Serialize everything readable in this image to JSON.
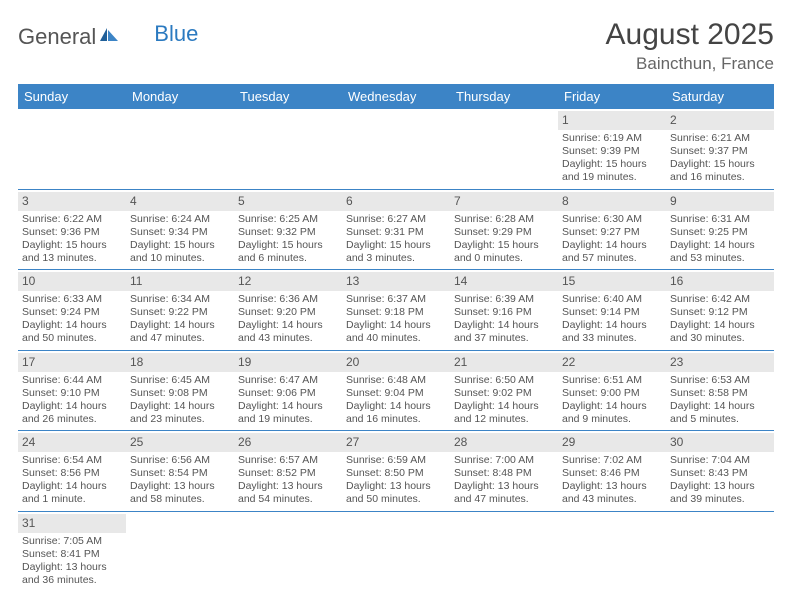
{
  "brand": {
    "general": "General",
    "blue": "Blue"
  },
  "header": {
    "title": "August 2025",
    "location": "Baincthun, France"
  },
  "columns": [
    "Sunday",
    "Monday",
    "Tuesday",
    "Wednesday",
    "Thursday",
    "Friday",
    "Saturday"
  ],
  "colors": {
    "header_bg": "#3c84c6",
    "header_text": "#ffffff",
    "daynum_bg": "#e8e8e8",
    "row_divider": "#3c84c6",
    "page_bg": "#ffffff",
    "text": "#4a4a4a"
  },
  "layout": {
    "first_weekday_index": 5,
    "days_in_month": 31
  },
  "cells": {
    "1": {
      "sunrise": "Sunrise: 6:19 AM",
      "sunset": "Sunset: 9:39 PM",
      "daylight": "Daylight: 15 hours and 19 minutes."
    },
    "2": {
      "sunrise": "Sunrise: 6:21 AM",
      "sunset": "Sunset: 9:37 PM",
      "daylight": "Daylight: 15 hours and 16 minutes."
    },
    "3": {
      "sunrise": "Sunrise: 6:22 AM",
      "sunset": "Sunset: 9:36 PM",
      "daylight": "Daylight: 15 hours and 13 minutes."
    },
    "4": {
      "sunrise": "Sunrise: 6:24 AM",
      "sunset": "Sunset: 9:34 PM",
      "daylight": "Daylight: 15 hours and 10 minutes."
    },
    "5": {
      "sunrise": "Sunrise: 6:25 AM",
      "sunset": "Sunset: 9:32 PM",
      "daylight": "Daylight: 15 hours and 6 minutes."
    },
    "6": {
      "sunrise": "Sunrise: 6:27 AM",
      "sunset": "Sunset: 9:31 PM",
      "daylight": "Daylight: 15 hours and 3 minutes."
    },
    "7": {
      "sunrise": "Sunrise: 6:28 AM",
      "sunset": "Sunset: 9:29 PM",
      "daylight": "Daylight: 15 hours and 0 minutes."
    },
    "8": {
      "sunrise": "Sunrise: 6:30 AM",
      "sunset": "Sunset: 9:27 PM",
      "daylight": "Daylight: 14 hours and 57 minutes."
    },
    "9": {
      "sunrise": "Sunrise: 6:31 AM",
      "sunset": "Sunset: 9:25 PM",
      "daylight": "Daylight: 14 hours and 53 minutes."
    },
    "10": {
      "sunrise": "Sunrise: 6:33 AM",
      "sunset": "Sunset: 9:24 PM",
      "daylight": "Daylight: 14 hours and 50 minutes."
    },
    "11": {
      "sunrise": "Sunrise: 6:34 AM",
      "sunset": "Sunset: 9:22 PM",
      "daylight": "Daylight: 14 hours and 47 minutes."
    },
    "12": {
      "sunrise": "Sunrise: 6:36 AM",
      "sunset": "Sunset: 9:20 PM",
      "daylight": "Daylight: 14 hours and 43 minutes."
    },
    "13": {
      "sunrise": "Sunrise: 6:37 AM",
      "sunset": "Sunset: 9:18 PM",
      "daylight": "Daylight: 14 hours and 40 minutes."
    },
    "14": {
      "sunrise": "Sunrise: 6:39 AM",
      "sunset": "Sunset: 9:16 PM",
      "daylight": "Daylight: 14 hours and 37 minutes."
    },
    "15": {
      "sunrise": "Sunrise: 6:40 AM",
      "sunset": "Sunset: 9:14 PM",
      "daylight": "Daylight: 14 hours and 33 minutes."
    },
    "16": {
      "sunrise": "Sunrise: 6:42 AM",
      "sunset": "Sunset: 9:12 PM",
      "daylight": "Daylight: 14 hours and 30 minutes."
    },
    "17": {
      "sunrise": "Sunrise: 6:44 AM",
      "sunset": "Sunset: 9:10 PM",
      "daylight": "Daylight: 14 hours and 26 minutes."
    },
    "18": {
      "sunrise": "Sunrise: 6:45 AM",
      "sunset": "Sunset: 9:08 PM",
      "daylight": "Daylight: 14 hours and 23 minutes."
    },
    "19": {
      "sunrise": "Sunrise: 6:47 AM",
      "sunset": "Sunset: 9:06 PM",
      "daylight": "Daylight: 14 hours and 19 minutes."
    },
    "20": {
      "sunrise": "Sunrise: 6:48 AM",
      "sunset": "Sunset: 9:04 PM",
      "daylight": "Daylight: 14 hours and 16 minutes."
    },
    "21": {
      "sunrise": "Sunrise: 6:50 AM",
      "sunset": "Sunset: 9:02 PM",
      "daylight": "Daylight: 14 hours and 12 minutes."
    },
    "22": {
      "sunrise": "Sunrise: 6:51 AM",
      "sunset": "Sunset: 9:00 PM",
      "daylight": "Daylight: 14 hours and 9 minutes."
    },
    "23": {
      "sunrise": "Sunrise: 6:53 AM",
      "sunset": "Sunset: 8:58 PM",
      "daylight": "Daylight: 14 hours and 5 minutes."
    },
    "24": {
      "sunrise": "Sunrise: 6:54 AM",
      "sunset": "Sunset: 8:56 PM",
      "daylight": "Daylight: 14 hours and 1 minute."
    },
    "25": {
      "sunrise": "Sunrise: 6:56 AM",
      "sunset": "Sunset: 8:54 PM",
      "daylight": "Daylight: 13 hours and 58 minutes."
    },
    "26": {
      "sunrise": "Sunrise: 6:57 AM",
      "sunset": "Sunset: 8:52 PM",
      "daylight": "Daylight: 13 hours and 54 minutes."
    },
    "27": {
      "sunrise": "Sunrise: 6:59 AM",
      "sunset": "Sunset: 8:50 PM",
      "daylight": "Daylight: 13 hours and 50 minutes."
    },
    "28": {
      "sunrise": "Sunrise: 7:00 AM",
      "sunset": "Sunset: 8:48 PM",
      "daylight": "Daylight: 13 hours and 47 minutes."
    },
    "29": {
      "sunrise": "Sunrise: 7:02 AM",
      "sunset": "Sunset: 8:46 PM",
      "daylight": "Daylight: 13 hours and 43 minutes."
    },
    "30": {
      "sunrise": "Sunrise: 7:04 AM",
      "sunset": "Sunset: 8:43 PM",
      "daylight": "Daylight: 13 hours and 39 minutes."
    },
    "31": {
      "sunrise": "Sunrise: 7:05 AM",
      "sunset": "Sunset: 8:41 PM",
      "daylight": "Daylight: 13 hours and 36 minutes."
    }
  }
}
